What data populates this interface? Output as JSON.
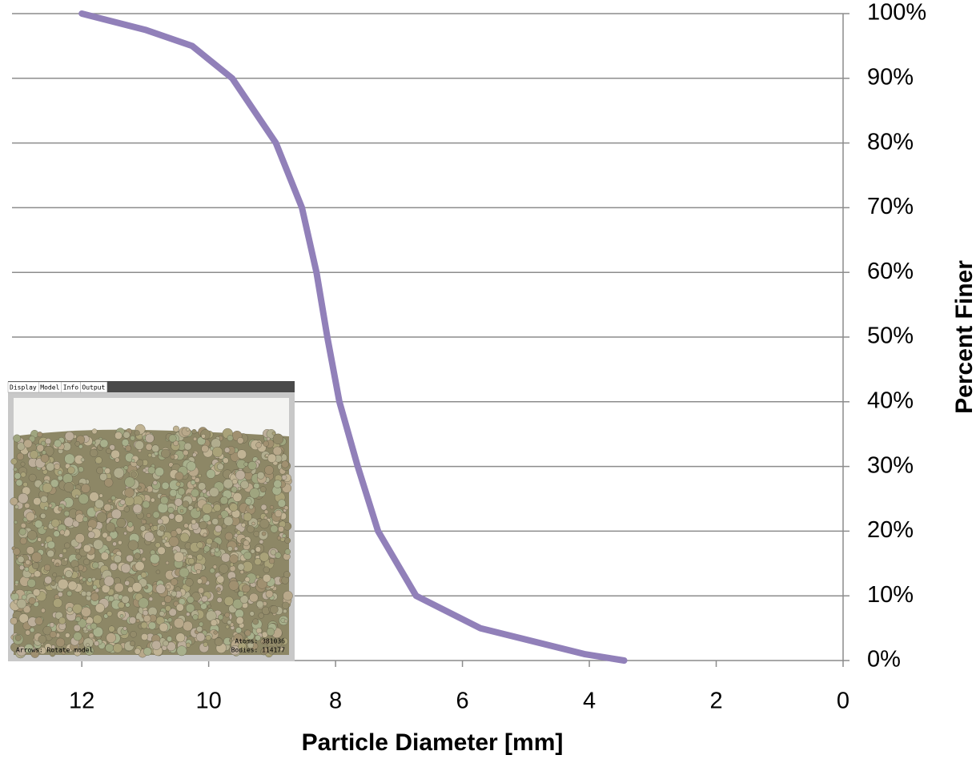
{
  "chart_data": {
    "type": "line",
    "x_label": "Particle Diameter [mm]",
    "y_label": "Percent Finer",
    "x": [
      12,
      11,
      10.26,
      9.63,
      8.94,
      8.53,
      8.3,
      8.13,
      7.94,
      7.65,
      7.33,
      6.73,
      5.72,
      4.08,
      3.45
    ],
    "series": [
      {
        "name": "Percent Finer",
        "color": "#9180b9",
        "values": [
          100,
          97.5,
          95,
          90,
          80,
          70,
          60,
          50,
          40,
          30,
          20,
          10,
          5,
          1,
          0
        ]
      }
    ],
    "xlim": [
      13.1,
      0
    ],
    "xticks": [
      12,
      10,
      8,
      6,
      4,
      2,
      0
    ],
    "ylim": [
      0,
      100
    ],
    "yticks": [
      {
        "value": 0,
        "label": "0%"
      },
      {
        "value": 10,
        "label": "10%"
      },
      {
        "value": 20,
        "label": "20%"
      },
      {
        "value": 30,
        "label": "30%"
      },
      {
        "value": 40,
        "label": "40%"
      },
      {
        "value": 50,
        "label": "50%"
      },
      {
        "value": 60,
        "label": "60%"
      },
      {
        "value": 70,
        "label": "70%"
      },
      {
        "value": 80,
        "label": "80%"
      },
      {
        "value": 90,
        "label": "90%"
      },
      {
        "value": 100,
        "label": "100%"
      }
    ],
    "grid": true
  },
  "inset": {
    "tabs": [
      "Display",
      "Model",
      "Info",
      "Output"
    ],
    "status_left": "Arrows: Rotate model",
    "status_atoms": "Atoms: 381036",
    "status_bodies": "Bodies: 114177"
  }
}
